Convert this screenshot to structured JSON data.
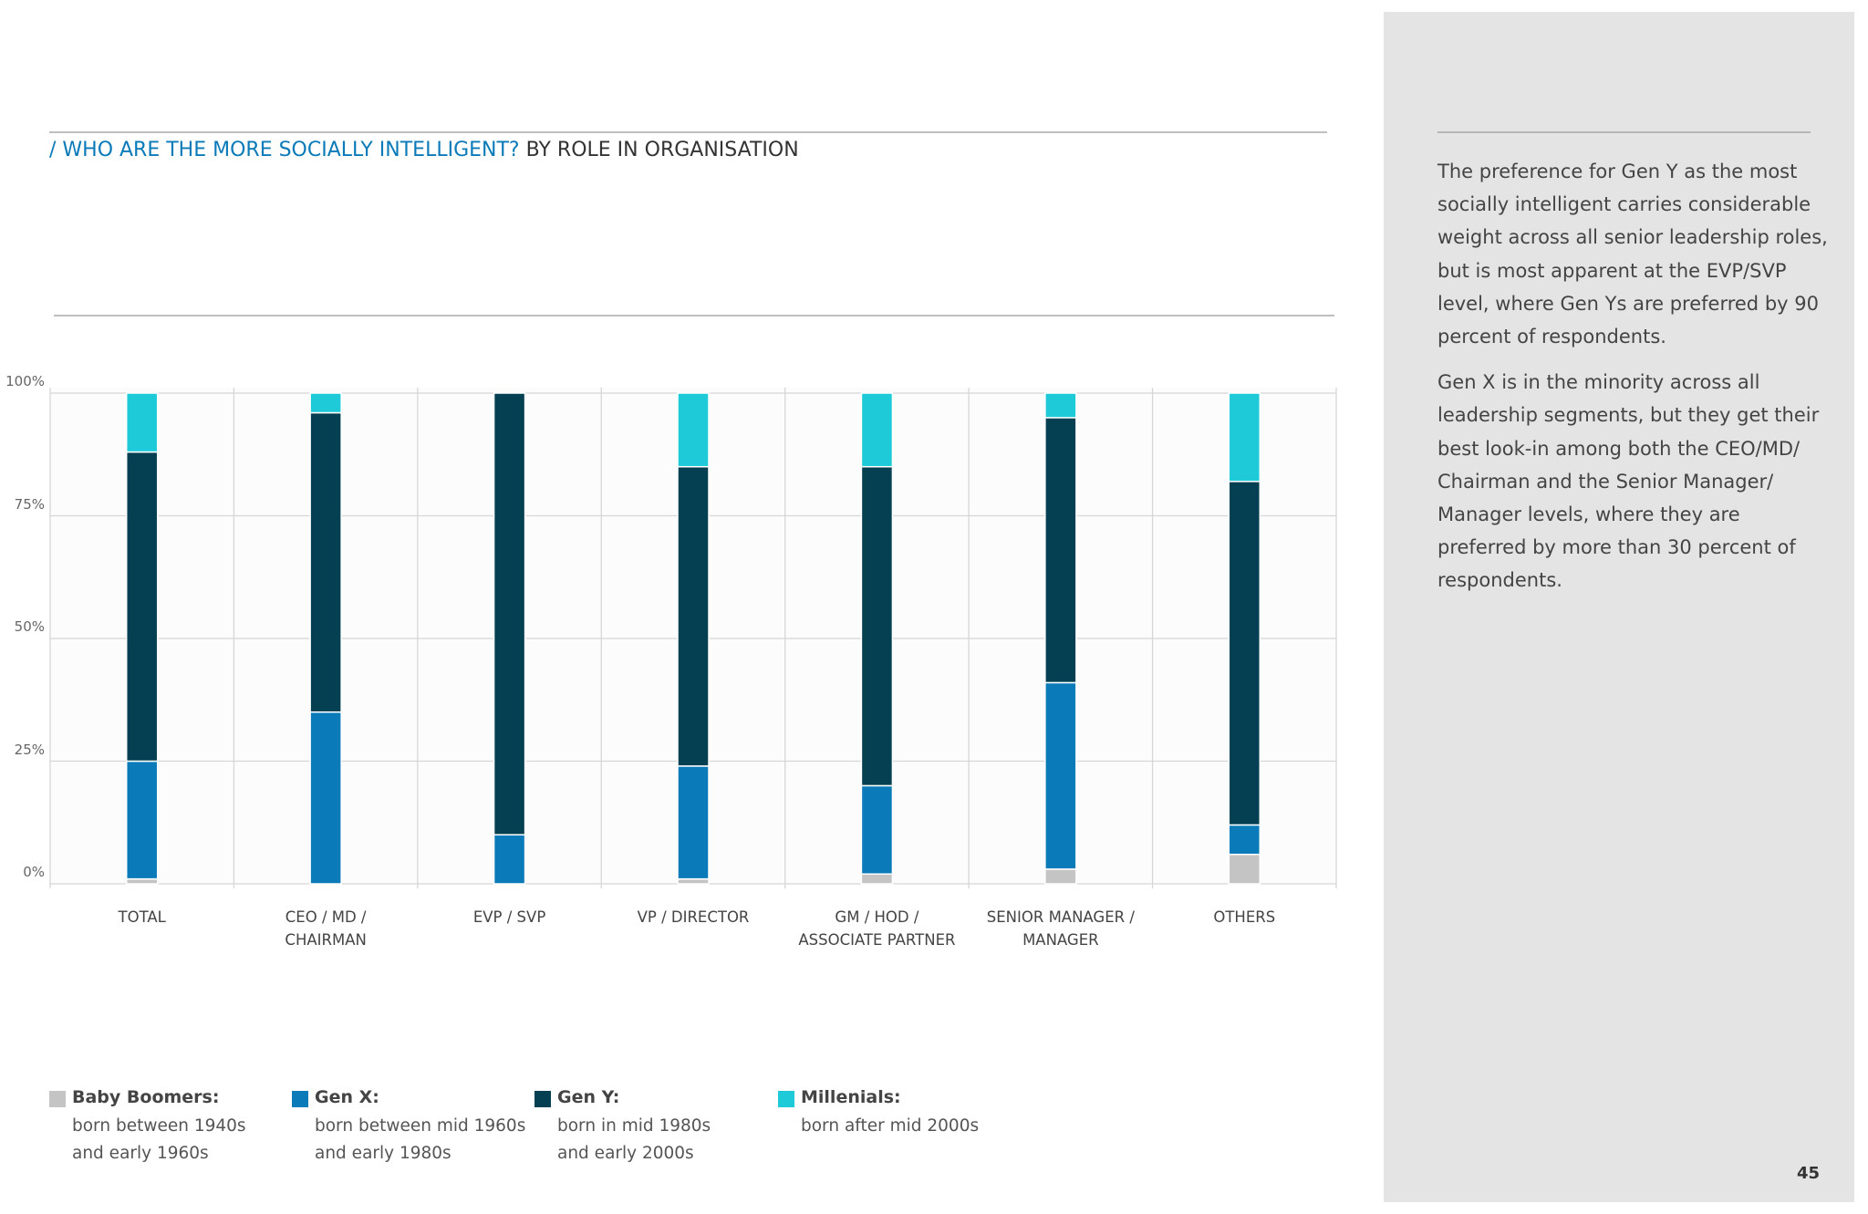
{
  "chart_data": {
    "type": "stacked_bar",
    "title": "/ WHO ARE THE MORE SOCIALLY INTELLIGENT?",
    "subtitle": "BY ROLE IN ORGANISATION",
    "categories": [
      "TOTAL",
      "CEO / MD /\nCHAIRMAN",
      "EVP / SVP",
      "VP / DIRECTOR",
      "GM / HOD /\nASSOCIATE PARTNER",
      "SENIOR MANAGER /\nMANAGER",
      "OTHERS"
    ],
    "series": [
      {
        "name": "Baby Boomers:",
        "description": "born between 1940s\nand early 1960s",
        "color": "#c4c4c4",
        "values": [
          1,
          0,
          0,
          1,
          2,
          3,
          6
        ]
      },
      {
        "name": "Gen X:",
        "description": "born between mid 1960s\nand early 1980s",
        "color": "#0a7ab8",
        "values": [
          24,
          35,
          10,
          23,
          18,
          38,
          6
        ]
      },
      {
        "name": "Gen Y:",
        "description": "born in mid 1980s\nand early 2000s",
        "color": "#054052",
        "values": [
          63,
          61,
          90,
          61,
          65,
          54,
          70
        ]
      },
      {
        "name": "Millenials:",
        "description": "born after mid 2000s",
        "color": "#1ecad8",
        "values": [
          12,
          4,
          0,
          15,
          15,
          5,
          18
        ]
      }
    ],
    "ylim": [
      0,
      100
    ],
    "yticks": [
      {
        "value": 0,
        "label": "0%"
      },
      {
        "value": 25,
        "label": "25%"
      },
      {
        "value": 50,
        "label": "50%"
      },
      {
        "value": 75,
        "label": "75%"
      },
      {
        "value": 100,
        "label": "100%"
      }
    ],
    "grid": true
  },
  "sidebar": {
    "paragraphs": [
      "The preference for Gen Y as the most socially intelligent carries considerable weight across all senior leadership roles, but is most apparent at the EVP/SVP level, where Gen Ys are preferred by 90 percent of respondents.",
      "Gen X is in the minority across all leadership segments, but they get their best look-in among both the CEO/MD/ Chairman and the Senior Manager/ Manager levels, where they are preferred by more than 30 percent of respondents."
    ]
  },
  "page_number": "45"
}
